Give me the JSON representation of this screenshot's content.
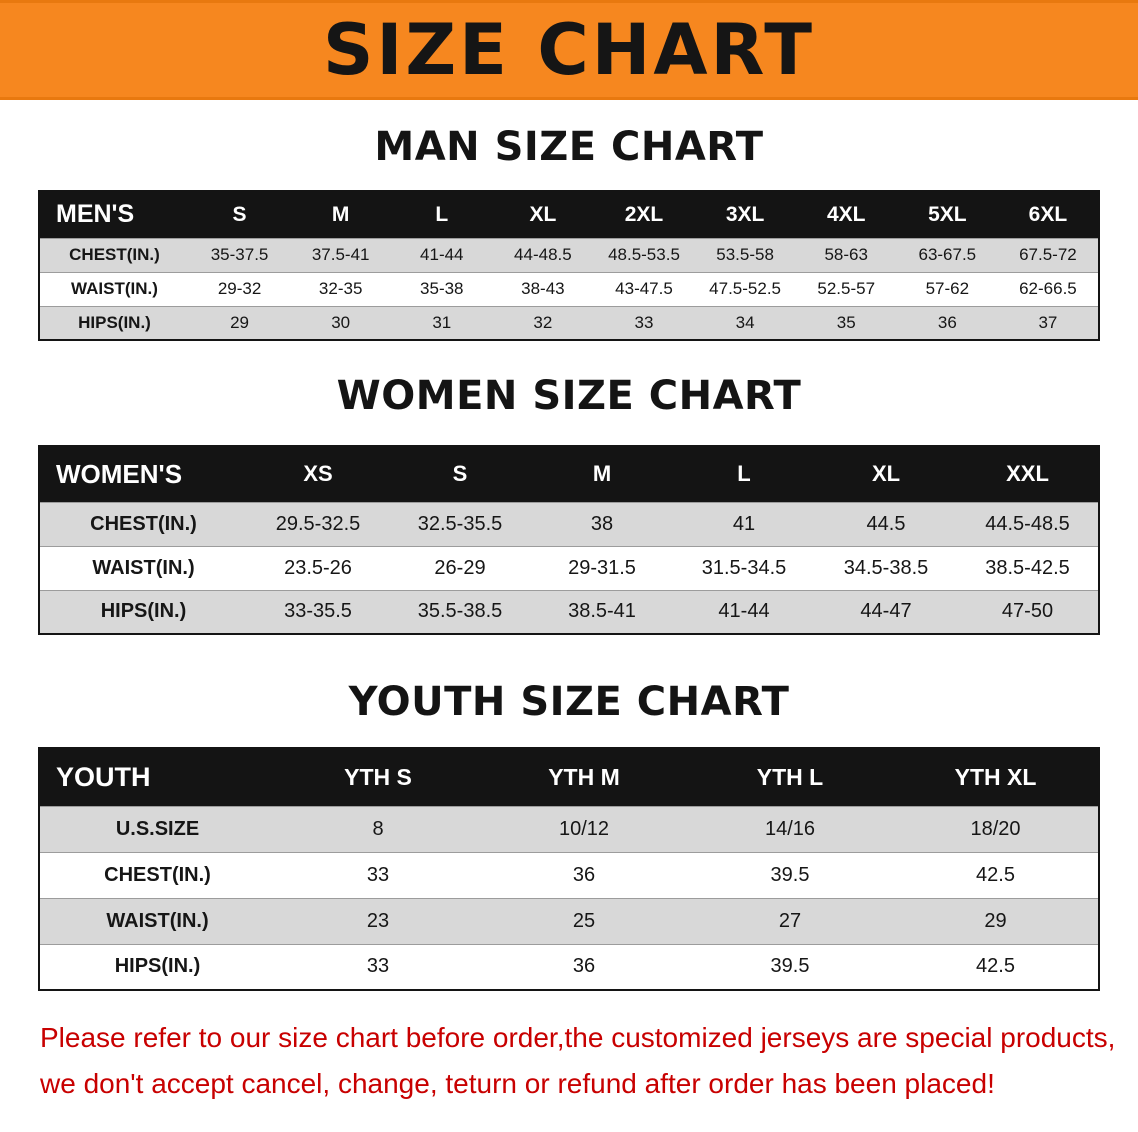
{
  "banner": {
    "title": "SIZE CHART"
  },
  "colors": {
    "banner_bg": "#F6871F",
    "banner_text": "#151515",
    "table_header_bg": "#141414",
    "table_header_text": "#FFFFFF",
    "row_shade_gray": "#D8D8D8",
    "disclaimer_text": "#C80000"
  },
  "sections": [
    {
      "id": "men",
      "heading": "MAN SIZE CHART",
      "table": {
        "header": [
          "MEN'S",
          "S",
          "M",
          "L",
          "XL",
          "2XL",
          "3XL",
          "4XL",
          "5XL",
          "6XL"
        ],
        "rows": [
          {
            "label": "CHEST(IN.)",
            "shade": "gray",
            "values": [
              "35-37.5",
              "37.5-41",
              "41-44",
              "44-48.5",
              "48.5-53.5",
              "53.5-58",
              "58-63",
              "63-67.5",
              "67.5-72"
            ]
          },
          {
            "label": "WAIST(IN.)",
            "shade": "white",
            "values": [
              "29-32",
              "32-35",
              "35-38",
              "38-43",
              "43-47.5",
              "47.5-52.5",
              "52.5-57",
              "57-62",
              "62-66.5"
            ]
          },
          {
            "label": "HIPS(IN.)",
            "shade": "gray",
            "values": [
              "29",
              "30",
              "31",
              "32",
              "33",
              "34",
              "35",
              "36",
              "37"
            ]
          }
        ]
      }
    },
    {
      "id": "women",
      "heading": "WOMEN SIZE CHART",
      "table": {
        "header": [
          "WOMEN'S",
          "XS",
          "S",
          "M",
          "L",
          "XL",
          "XXL"
        ],
        "rows": [
          {
            "label": "CHEST(IN.)",
            "shade": "gray",
            "values": [
              "29.5-32.5",
              "32.5-35.5",
              "38",
              "41",
              "44.5",
              "44.5-48.5"
            ]
          },
          {
            "label": "WAIST(IN.)",
            "shade": "white",
            "values": [
              "23.5-26",
              "26-29",
              "29-31.5",
              "31.5-34.5",
              "34.5-38.5",
              "38.5-42.5"
            ]
          },
          {
            "label": "HIPS(IN.)",
            "shade": "gray",
            "values": [
              "33-35.5",
              "35.5-38.5",
              "38.5-41",
              "41-44",
              "44-47",
              "47-50"
            ]
          }
        ]
      }
    },
    {
      "id": "youth",
      "heading": "YOUTH SIZE CHART",
      "table": {
        "header": [
          "YOUTH",
          "YTH S",
          "YTH M",
          "YTH L",
          "YTH XL"
        ],
        "rows": [
          {
            "label": "U.S.SIZE",
            "shade": "gray",
            "values": [
              "8",
              "10/12",
              "14/16",
              "18/20"
            ]
          },
          {
            "label": "CHEST(IN.)",
            "shade": "white",
            "values": [
              "33",
              "36",
              "39.5",
              "42.5"
            ]
          },
          {
            "label": "WAIST(IN.)",
            "shade": "gray",
            "values": [
              "23",
              "25",
              "27",
              "29"
            ]
          },
          {
            "label": "HIPS(IN.)",
            "shade": "white",
            "values": [
              "33",
              "36",
              "39.5",
              "42.5"
            ]
          }
        ]
      }
    }
  ],
  "disclaimer": {
    "lines": [
      "Please refer to our size chart before order,the customized jerseys are special products,",
      "we don't accept cancel, change, teturn or refund after order has been placed!"
    ]
  },
  "chart_data": [
    {
      "type": "table",
      "title": "MAN SIZE CHART",
      "columns": [
        "MEN'S",
        "S",
        "M",
        "L",
        "XL",
        "2XL",
        "3XL",
        "4XL",
        "5XL",
        "6XL"
      ],
      "rows": [
        [
          "CHEST(IN.)",
          "35-37.5",
          "37.5-41",
          "41-44",
          "44-48.5",
          "48.5-53.5",
          "53.5-58",
          "58-63",
          "63-67.5",
          "67.5-72"
        ],
        [
          "WAIST(IN.)",
          "29-32",
          "32-35",
          "35-38",
          "38-43",
          "43-47.5",
          "47.5-52.5",
          "52.5-57",
          "57-62",
          "62-66.5"
        ],
        [
          "HIPS(IN.)",
          "29",
          "30",
          "31",
          "32",
          "33",
          "34",
          "35",
          "36",
          "37"
        ]
      ]
    },
    {
      "type": "table",
      "title": "WOMEN SIZE CHART",
      "columns": [
        "WOMEN'S",
        "XS",
        "S",
        "M",
        "L",
        "XL",
        "XXL"
      ],
      "rows": [
        [
          "CHEST(IN.)",
          "29.5-32.5",
          "32.5-35.5",
          "38",
          "41",
          "44.5",
          "44.5-48.5"
        ],
        [
          "WAIST(IN.)",
          "23.5-26",
          "26-29",
          "29-31.5",
          "31.5-34.5",
          "34.5-38.5",
          "38.5-42.5"
        ],
        [
          "HIPS(IN.)",
          "33-35.5",
          "35.5-38.5",
          "38.5-41",
          "41-44",
          "44-47",
          "47-50"
        ]
      ]
    },
    {
      "type": "table",
      "title": "YOUTH SIZE CHART",
      "columns": [
        "YOUTH",
        "YTH S",
        "YTH M",
        "YTH L",
        "YTH XL"
      ],
      "rows": [
        [
          "U.S.SIZE",
          "8",
          "10/12",
          "14/16",
          "18/20"
        ],
        [
          "CHEST(IN.)",
          "33",
          "36",
          "39.5",
          "42.5"
        ],
        [
          "WAIST(IN.)",
          "23",
          "25",
          "27",
          "29"
        ],
        [
          "HIPS(IN.)",
          "33",
          "36",
          "39.5",
          "42.5"
        ]
      ]
    }
  ]
}
